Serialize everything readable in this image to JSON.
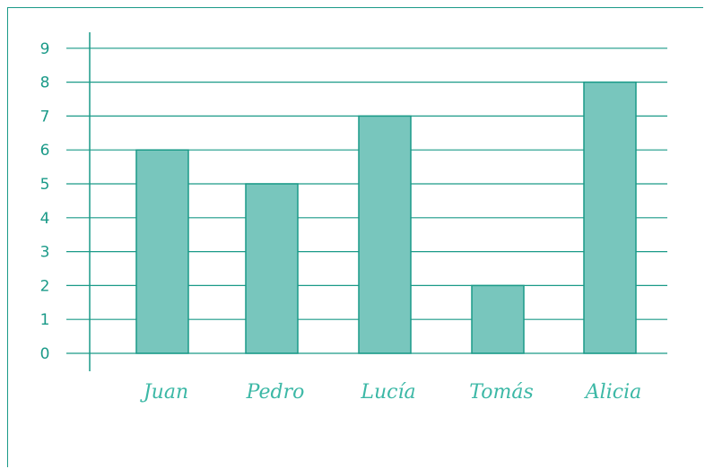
{
  "chart_data": {
    "type": "bar",
    "categories": [
      "Juan",
      "Pedro",
      "Lucía",
      "Tomás",
      "Alicia"
    ],
    "values": [
      6,
      5,
      7,
      2,
      8
    ],
    "yticks": [
      "0",
      "1",
      "2",
      "3",
      "4",
      "5",
      "6",
      "7",
      "8",
      "9"
    ],
    "ylim": [
      0,
      9
    ],
    "grid": true,
    "colors": {
      "bar": "#78c6bd",
      "stroke": "#1a9a88",
      "text": "#1a9a88"
    }
  }
}
